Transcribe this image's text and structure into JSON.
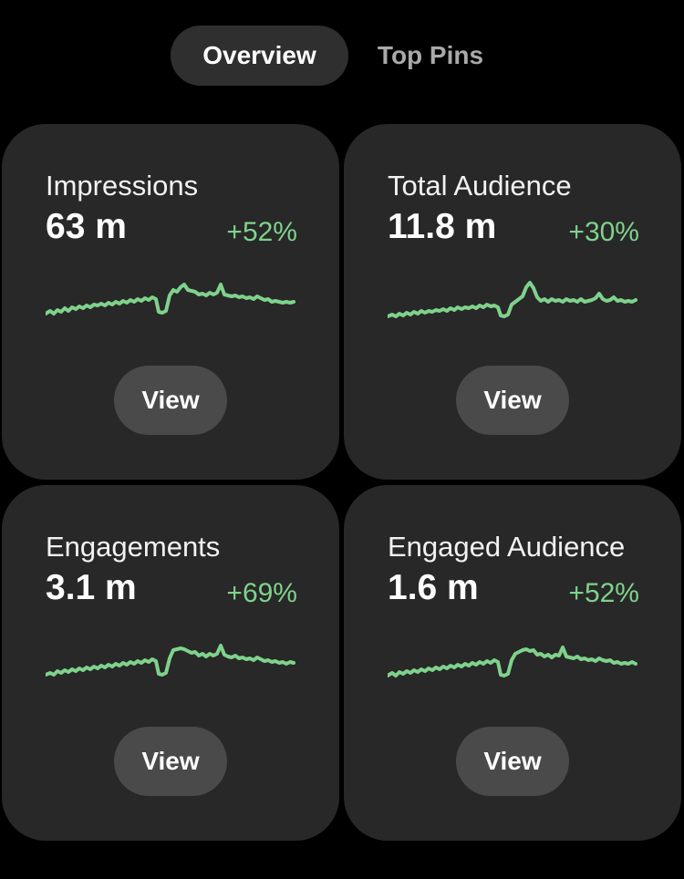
{
  "tabs": [
    {
      "label": "Overview",
      "active": true
    },
    {
      "label": "Top Pins",
      "active": false
    }
  ],
  "colors": {
    "background": "#000000",
    "card": "#282828",
    "accent_green": "#7fd28c",
    "button": "#4a4a4a"
  },
  "cards": [
    {
      "title": "Impressions",
      "value": "63 m",
      "change": "+52%",
      "button_label": "View"
    },
    {
      "title": "Total Audience",
      "value": "11.8 m",
      "change": "+30%",
      "button_label": "View"
    },
    {
      "title": "Engagements",
      "value": "3.1 m",
      "change": "+69%",
      "button_label": "View"
    },
    {
      "title": "Engaged Audience",
      "value": "1.6 m",
      "change": "+52%",
      "button_label": "View"
    }
  ]
}
